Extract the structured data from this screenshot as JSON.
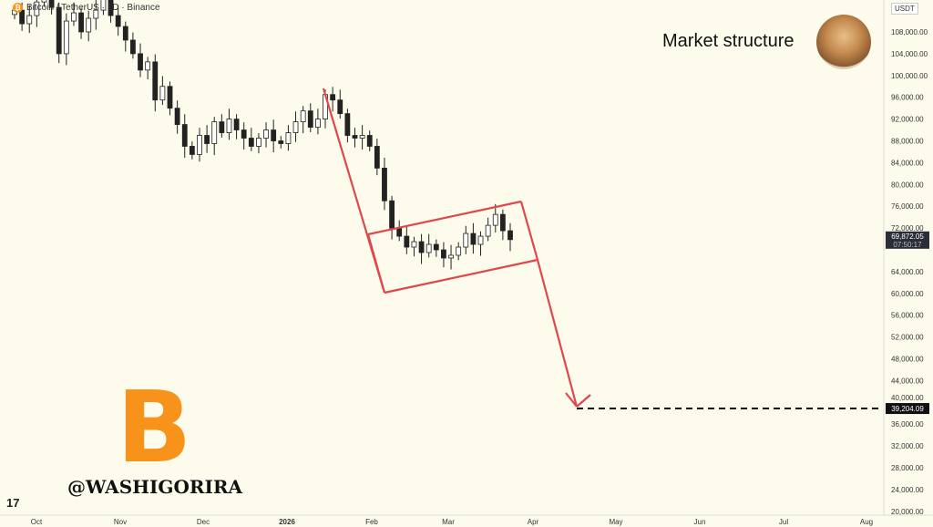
{
  "header": {
    "symbol": "Bitcoin / TetherUS · 1D · Binance",
    "coin_icon": "bitcoin-icon"
  },
  "overlay": {
    "title": "Market structure",
    "watermark": "@WASHIGORIRA",
    "logo_symbol": "B",
    "currency": "USDT",
    "tv_logo": "17"
  },
  "colors": {
    "background": "#fdfbec",
    "up": "#ffffff",
    "down": "#222222",
    "pattern": "#e0474c",
    "bitcoin": "#f7931a"
  },
  "chart_data": {
    "type": "candlestick",
    "x_ticks": [
      "Oct",
      "Nov",
      "Dec",
      "2026",
      "Feb",
      "Mar",
      "Apr",
      "May",
      "Jun",
      "Jul",
      "Aug"
    ],
    "y_ticks": [
      "108,000.00",
      "104,000.00",
      "100,000.00",
      "96,000.00",
      "92,000.00",
      "88,000.00",
      "84,000.00",
      "80,000.00",
      "76,000.00",
      "72,000.00",
      "64,000.00",
      "60,000.00",
      "56,000.00",
      "52,000.00",
      "48,000.00",
      "44,000.00",
      "40,000.00",
      "36,000.00",
      "32,000.00",
      "28,000.00",
      "24,000.00",
      "20,000.00"
    ],
    "ylim": [
      20000,
      114000
    ],
    "closes": [
      112000,
      109500,
      111000,
      113500,
      115000,
      112500,
      104000,
      110000,
      111500,
      108000,
      110500,
      112000,
      114000,
      111000,
      109000,
      106500,
      104000,
      101000,
      102500,
      95500,
      98000,
      94000,
      91000,
      87000,
      85500,
      89000,
      87500,
      91500,
      89500,
      92000,
      90000,
      88500,
      87000,
      88500,
      90000,
      88000,
      87500,
      89500,
      91500,
      93500,
      90500,
      92000,
      96500,
      95500,
      93000,
      89000,
      88500,
      89000,
      87000,
      83000,
      77000,
      72000,
      70500,
      68500,
      69500,
      67500,
      69000,
      68000,
      66500,
      67000,
      68500,
      71000,
      69000,
      70500,
      72500,
      74500,
      71500,
      69872
    ],
    "current_price": "69,872.05",
    "countdown": "07:50:17",
    "target_price": "39,204.09",
    "target_value": 39204.09,
    "annotations": {
      "pattern": "bear flag",
      "target_line": "dashed"
    }
  }
}
